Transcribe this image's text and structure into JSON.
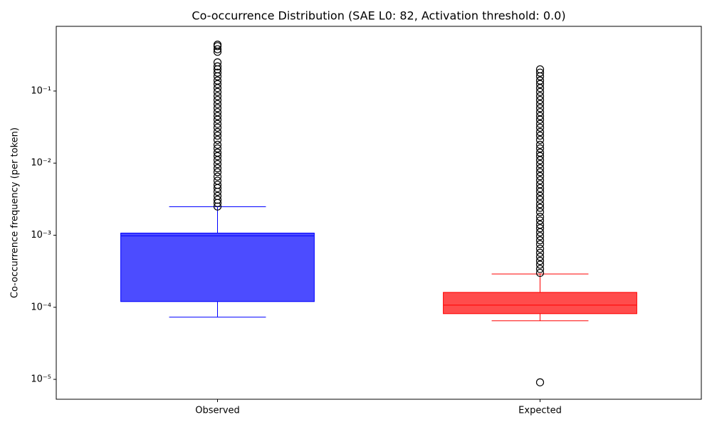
{
  "chart_data": {
    "type": "box",
    "title": "Co-occurrence Distribution (SAE L0: 82, Activation threshold: 0.0)",
    "ylabel": "Co-occurrence frequency (per token)",
    "log_y": true,
    "ylim": [
      5.3e-06,
      0.79
    ],
    "yticks": [
      {
        "value": 1e-05,
        "label": "10⁻⁵"
      },
      {
        "value": 0.0001,
        "label": "10⁻⁴"
      },
      {
        "value": 0.001,
        "label": "10⁻³"
      },
      {
        "value": 0.01,
        "label": "10⁻²"
      },
      {
        "value": 0.1,
        "label": "10⁻¹"
      }
    ],
    "categories": [
      "Observed",
      "Expected"
    ],
    "boxes": [
      {
        "color": "#0000ff",
        "whisker_low": 7.3e-05,
        "q1": 0.00012,
        "median": 0.00098,
        "q3": 0.00107,
        "whisker_high": 0.00248,
        "outliers": [
          0.0025,
          0.0028,
          0.0031,
          0.0035,
          0.004,
          0.0045,
          0.005,
          0.0057,
          0.0065,
          0.0075,
          0.0085,
          0.0097,
          0.011,
          0.0125,
          0.014,
          0.016,
          0.018,
          0.021,
          0.024,
          0.027,
          0.031,
          0.035,
          0.04,
          0.045,
          0.051,
          0.058,
          0.066,
          0.075,
          0.085,
          0.097,
          0.11,
          0.125,
          0.14,
          0.16,
          0.18,
          0.2,
          0.22,
          0.25,
          0.35,
          0.38,
          0.42,
          0.44
        ]
      },
      {
        "color": "#ff0000",
        "whisker_low": 6.5e-05,
        "q1": 8.15e-05,
        "median": 0.000107,
        "q3": 0.000161,
        "whisker_high": 0.00029,
        "outliers": [
          9.1e-06,
          0.0003,
          0.00034,
          0.00039,
          0.00044,
          0.0005,
          0.00057,
          0.00065,
          0.00075,
          0.00085,
          0.00097,
          0.0011,
          0.00125,
          0.0014,
          0.0016,
          0.0018,
          0.0021,
          0.0024,
          0.0027,
          0.0031,
          0.0035,
          0.004,
          0.0045,
          0.0051,
          0.0058,
          0.0066,
          0.0075,
          0.0085,
          0.0097,
          0.011,
          0.0125,
          0.014,
          0.016,
          0.018,
          0.021,
          0.024,
          0.027,
          0.031,
          0.035,
          0.04,
          0.045,
          0.051,
          0.058,
          0.066,
          0.075,
          0.085,
          0.097,
          0.11,
          0.125,
          0.14,
          0.16,
          0.18,
          0.2
        ]
      }
    ]
  }
}
